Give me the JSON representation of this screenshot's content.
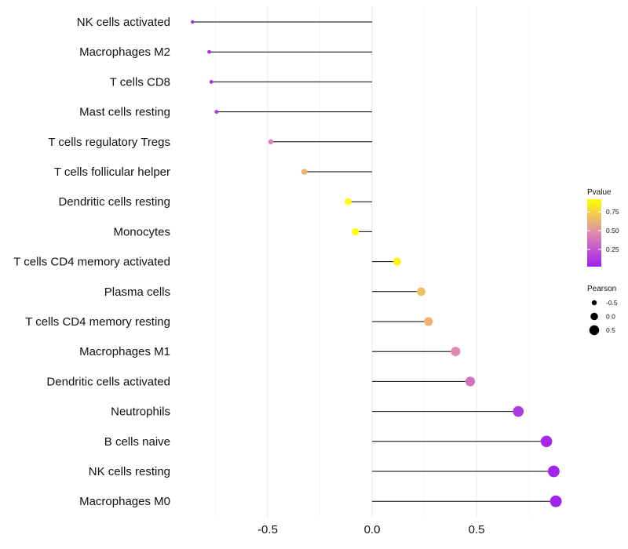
{
  "chart_data": {
    "type": "lollipop",
    "title": "",
    "xlabel": "",
    "ylabel": "",
    "xlim": [
      -0.87,
      0.92
    ],
    "xticks": [
      -0.5,
      0.0,
      0.5
    ],
    "xtick_labels": [
      "-0.5",
      "0.0",
      "0.5"
    ],
    "grid": "vertical-only",
    "color_scale": {
      "low": "#a020f0",
      "mid": "#e08ab0",
      "high": "#ffff00"
    },
    "points": [
      {
        "label": "NK cells activated",
        "value": -0.86,
        "pvalue": 0.05
      },
      {
        "label": "Macrophages M2",
        "value": -0.78,
        "pvalue": 0.08
      },
      {
        "label": "T cells CD8",
        "value": -0.77,
        "pvalue": 0.09
      },
      {
        "label": "Mast cells resting",
        "value": -0.745,
        "pvalue": 0.12
      },
      {
        "label": "T cells regulatory  Tregs",
        "value": -0.485,
        "pvalue": 0.45
      },
      {
        "label": "T cells follicular helper",
        "value": -0.325,
        "pvalue": 0.62
      },
      {
        "label": "Dendritic cells resting",
        "value": -0.115,
        "pvalue": 0.9
      },
      {
        "label": "Monocytes",
        "value": -0.08,
        "pvalue": 0.92
      },
      {
        "label": "T cells CD4 memory activated",
        "value": 0.12,
        "pvalue": 0.88
      },
      {
        "label": "Plasma cells",
        "value": 0.235,
        "pvalue": 0.68
      },
      {
        "label": "T cells CD4 memory resting",
        "value": 0.27,
        "pvalue": 0.63
      },
      {
        "label": "Macrophages M1",
        "value": 0.4,
        "pvalue": 0.47
      },
      {
        "label": "Dendritic cells activated",
        "value": 0.47,
        "pvalue": 0.38
      },
      {
        "label": "Neutrophils",
        "value": 0.7,
        "pvalue": 0.12
      },
      {
        "label": "B cells naive",
        "value": 0.835,
        "pvalue": 0.06
      },
      {
        "label": "NK cells resting",
        "value": 0.87,
        "pvalue": 0.04
      },
      {
        "label": "Macrophages M0",
        "value": 0.88,
        "pvalue": 0.03
      }
    ],
    "legend_color": {
      "title": "Pvalue",
      "placement": "right",
      "range": [
        0.02,
        0.92
      ],
      "ticks": [
        0.25,
        0.5,
        0.75
      ],
      "tick_labels": [
        "0.25",
        "0.50",
        "0.75"
      ]
    },
    "legend_size": {
      "title": "Pearson",
      "placement": "right",
      "entries": [
        {
          "label": "-0.5",
          "value": -0.5
        },
        {
          "label": "0.0",
          "value": 0.0
        },
        {
          "label": "0.5",
          "value": 0.5
        }
      ]
    }
  }
}
